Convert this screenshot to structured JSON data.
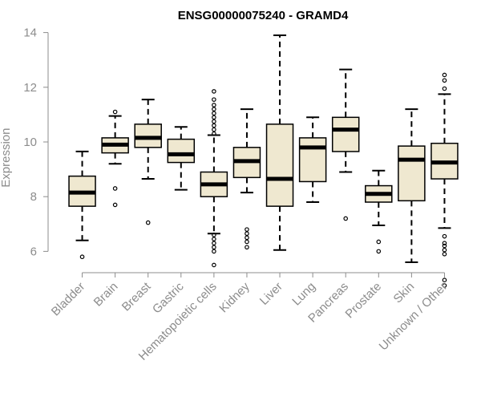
{
  "chart_data": {
    "type": "box",
    "title": "ENSG00000075240 - GRAMD4",
    "xlabel": "",
    "ylabel": "Expression",
    "ylim": [
      5,
      14.2
    ],
    "yticks": [
      6,
      8,
      10,
      12,
      14
    ],
    "yticklabels": [
      "6",
      "8",
      "10",
      "12",
      "14"
    ],
    "categories": [
      "Bladder",
      "Brain",
      "Breast",
      "Gastric",
      "Hematopoietic cells",
      "Kidney",
      "Liver",
      "Lung",
      "Pancreas",
      "Prostate",
      "Skin",
      "Unknown / Other"
    ],
    "box_fill": "#efe8d0",
    "box_stroke": "#000000",
    "median_color": "#000000",
    "axis_color": "#8c8c8c",
    "boxes": [
      {
        "category": "Bladder",
        "whisker_low": 6.4,
        "q1": 7.65,
        "median": 8.15,
        "q3": 8.75,
        "whisker_high": 9.65,
        "outliers": [
          5.8
        ]
      },
      {
        "category": "Brain",
        "whisker_low": 9.2,
        "q1": 9.6,
        "median": 9.9,
        "q3": 10.15,
        "whisker_high": 10.95,
        "outliers": [
          11.1,
          8.3,
          7.7
        ]
      },
      {
        "category": "Breast",
        "whisker_low": 8.65,
        "q1": 9.8,
        "median": 10.15,
        "q3": 10.65,
        "whisker_high": 11.55,
        "outliers": [
          7.05
        ]
      },
      {
        "category": "Gastric",
        "whisker_low": 8.25,
        "q1": 9.25,
        "median": 9.55,
        "q3": 10.1,
        "whisker_high": 10.55,
        "outliers": []
      },
      {
        "category": "Hematopoietic cells",
        "whisker_low": 6.65,
        "q1": 8.0,
        "median": 8.45,
        "q3": 8.9,
        "whisker_high": 10.25,
        "outliers": [
          10.3,
          10.45,
          10.6,
          10.75,
          10.9,
          11.05,
          11.2,
          11.35,
          11.55,
          11.85,
          6.6,
          6.45,
          6.3,
          6.15,
          6.0,
          5.5
        ]
      },
      {
        "category": "Kidney",
        "whisker_low": 8.15,
        "q1": 8.7,
        "median": 9.3,
        "q3": 9.8,
        "whisker_high": 11.2,
        "outliers": [
          6.8,
          6.65,
          6.5,
          6.35,
          6.15
        ]
      },
      {
        "category": "Liver",
        "whisker_low": 6.05,
        "q1": 7.65,
        "median": 8.65,
        "q3": 10.65,
        "whisker_high": 13.9,
        "outliers": []
      },
      {
        "category": "Lung",
        "whisker_low": 7.8,
        "q1": 8.55,
        "median": 9.8,
        "q3": 10.15,
        "whisker_high": 10.9,
        "outliers": []
      },
      {
        "category": "Pancreas",
        "whisker_low": 8.9,
        "q1": 9.65,
        "median": 10.45,
        "q3": 10.9,
        "whisker_high": 12.65,
        "outliers": [
          7.2
        ]
      },
      {
        "category": "Prostate",
        "whisker_low": 6.95,
        "q1": 7.8,
        "median": 8.1,
        "q3": 8.4,
        "whisker_high": 8.95,
        "outliers": [
          6.35,
          6.0
        ]
      },
      {
        "category": "Skin",
        "whisker_low": 5.6,
        "q1": 7.85,
        "median": 9.35,
        "q3": 9.85,
        "whisker_high": 11.2,
        "outliers": []
      },
      {
        "category": "Unknown / Other",
        "whisker_low": 6.85,
        "q1": 8.65,
        "median": 9.25,
        "q3": 9.95,
        "whisker_high": 11.75,
        "outliers": [
          12.45,
          12.25,
          11.95,
          6.55,
          6.3,
          6.2,
          6.05,
          5.9,
          4.95,
          4.75
        ]
      }
    ]
  }
}
